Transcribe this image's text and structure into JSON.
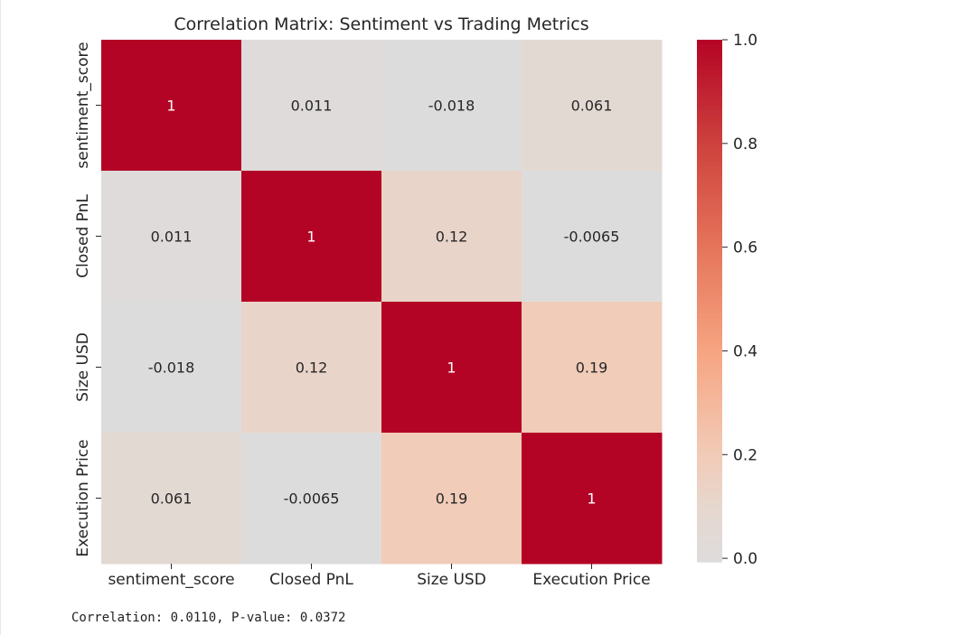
{
  "chart_data": {
    "type": "heatmap",
    "title": "Correlation Matrix: Sentiment vs Trading Metrics",
    "rows": [
      "sentiment_score",
      "Closed PnL",
      "Size USD",
      "Execution Price"
    ],
    "columns": [
      "sentiment_score",
      "Closed PnL",
      "Size USD",
      "Execution Price"
    ],
    "values": [
      [
        1,
        0.011,
        -0.018,
        0.061
      ],
      [
        0.011,
        1,
        0.12,
        -0.0065
      ],
      [
        -0.018,
        0.12,
        1,
        0.19
      ],
      [
        0.061,
        -0.0065,
        0.19,
        1
      ]
    ],
    "annotations": [
      [
        "1",
        "0.011",
        "-0.018",
        "0.061"
      ],
      [
        "0.011",
        "1",
        "0.12",
        "-0.0065"
      ],
      [
        "-0.018",
        "0.12",
        "1",
        "0.19"
      ],
      [
        "0.061",
        "-0.0065",
        "0.19",
        "1"
      ]
    ],
    "colormap": "coolwarm",
    "vmin": -0.0068,
    "vmax": 1.0,
    "colorbar": {
      "ticks": [
        0.0,
        0.2,
        0.4,
        0.6,
        0.8,
        1.0
      ],
      "tick_labels": [
        "0.0",
        "0.2",
        "0.4",
        "0.6",
        "0.8",
        "1.0"
      ]
    },
    "colors": {
      "high": "#b40426",
      "mid": "#dddcdc",
      "text_on_dark": "#ffffff",
      "text_on_light": "#262626"
    }
  },
  "output": {
    "text": "Correlation: 0.0110, P-value: 0.0372"
  }
}
